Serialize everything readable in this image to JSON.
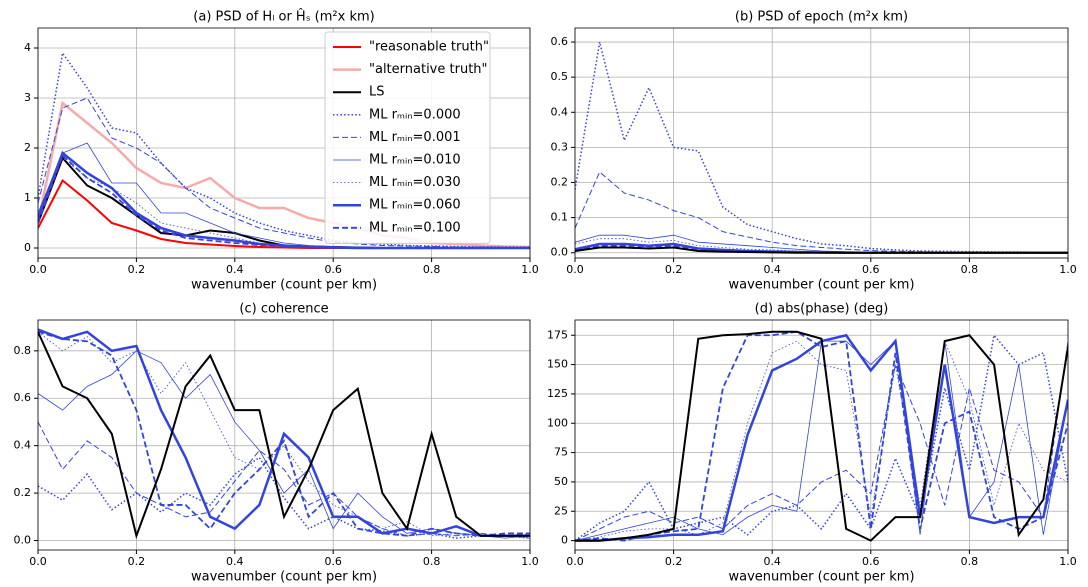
{
  "chart_data": [
    {
      "type": "line",
      "title": "(a) PSD of Hₗ or Ĥₛ (m²x km)",
      "x_label": "wavenumber (count per km)",
      "x": [
        0,
        0.05,
        0.1,
        0.15,
        0.2,
        0.25,
        0.3,
        0.35,
        0.4,
        0.45,
        0.5,
        0.55,
        0.6,
        0.65,
        0.7,
        0.75,
        0.8,
        0.85,
        0.9,
        0.95,
        1.0
      ],
      "xlim": [
        0,
        1
      ],
      "xticks": [
        {
          "value": 0,
          "label": "0.0"
        },
        0.2,
        0.4,
        0.6,
        0.8,
        {
          "value": 1,
          "label": "1.0"
        }
      ],
      "ylim": [
        -0.2,
        4.4
      ],
      "yticks": [
        0,
        1,
        2,
        3,
        4
      ],
      "grid": true,
      "legend": "upper right",
      "series": [
        {
          "name": "\"reasonable truth\"",
          "color": "#ff0000",
          "linestyle": "solid",
          "linewidth": 2,
          "values": [
            0.4,
            1.35,
            0.95,
            0.5,
            0.35,
            0.18,
            0.1,
            0.07,
            0.04,
            0.02,
            0.01,
            0,
            0,
            0,
            0,
            0,
            0,
            0,
            0,
            0,
            0
          ]
        },
        {
          "name": "\"alternative truth\"",
          "color": "#f7aaaa",
          "linestyle": "solid",
          "linewidth": 2.5,
          "values": [
            0.5,
            2.9,
            2.5,
            2.1,
            1.6,
            1.3,
            1.2,
            1.4,
            1.0,
            0.8,
            0.8,
            0.6,
            0.5,
            0.4,
            0.25,
            0.2,
            0.1,
            0.08,
            0.05,
            0.03,
            0.02
          ]
        },
        {
          "name": "LS",
          "color": "#000000",
          "linestyle": "solid",
          "linewidth": 2,
          "values": [
            0.5,
            1.8,
            1.25,
            1.0,
            0.65,
            0.3,
            0.25,
            0.35,
            0.3,
            0.15,
            0.05,
            0.03,
            0.02,
            0.01,
            0,
            0,
            0,
            0,
            0,
            0,
            0
          ]
        },
        {
          "name": "ML rₘᵢₙ=0.000",
          "color": "#3344dd",
          "linestyle": "dotted",
          "linewidth": 1.5,
          "values": [
            1.0,
            3.9,
            3.2,
            2.4,
            2.3,
            1.7,
            1.2,
            1.0,
            0.7,
            0.5,
            0.35,
            0.25,
            0.15,
            0.1,
            0.08,
            0.05,
            0.04,
            0.03,
            0.02,
            0.02,
            0.02
          ]
        },
        {
          "name": "ML rₘᵢₙ=0.001",
          "color": "#3344dd",
          "linestyle": "dashed",
          "linewidth": 1,
          "values": [
            0.9,
            2.8,
            3.0,
            2.2,
            2.0,
            1.7,
            1.2,
            0.8,
            0.6,
            0.4,
            0.3,
            0.2,
            0.12,
            0.08,
            0.05,
            0.04,
            0.03,
            0.02,
            0.02,
            0.01,
            0.01
          ]
        },
        {
          "name": "ML rₘᵢₙ=0.010",
          "color": "#3344dd",
          "linestyle": "solid",
          "linewidth": 0.8,
          "values": [
            0.7,
            1.9,
            2.1,
            1.3,
            1.3,
            0.7,
            0.7,
            0.5,
            0.3,
            0.2,
            0.1,
            0.05,
            0.03,
            0.02,
            0.01,
            0.01,
            0,
            0,
            0,
            0,
            0
          ]
        },
        {
          "name": "ML rₘᵢₙ=0.030",
          "color": "#3344dd",
          "linestyle": "dotted",
          "linewidth": 0.8,
          "values": [
            0.6,
            1.8,
            1.4,
            1.2,
            0.9,
            0.5,
            0.4,
            0.3,
            0.2,
            0.1,
            0.05,
            0.03,
            0.02,
            0.01,
            0,
            0,
            0,
            0,
            0,
            0,
            0
          ]
        },
        {
          "name": "ML rₘᵢₙ=0.060",
          "color": "#3344dd",
          "linestyle": "solid",
          "linewidth": 2.5,
          "values": [
            0.6,
            1.9,
            1.5,
            1.2,
            0.7,
            0.4,
            0.25,
            0.2,
            0.15,
            0.08,
            0.05,
            0.02,
            0.01,
            0,
            0,
            0,
            0,
            0,
            0,
            0,
            0
          ]
        },
        {
          "name": "ML rₘᵢₙ=0.100",
          "color": "#3344dd",
          "linestyle": "dashed",
          "linewidth": 1.8,
          "values": [
            0.5,
            1.85,
            1.4,
            1.1,
            0.65,
            0.35,
            0.2,
            0.15,
            0.1,
            0.06,
            0.04,
            0.02,
            0.01,
            0,
            0,
            0,
            0,
            0,
            0,
            0,
            0
          ]
        }
      ]
    },
    {
      "type": "line",
      "title": "(b) PSD of epoch (m²x km)",
      "x_label": "wavenumber (count per km)",
      "x": [
        0,
        0.05,
        0.1,
        0.15,
        0.2,
        0.25,
        0.3,
        0.35,
        0.4,
        0.45,
        0.5,
        0.55,
        0.6,
        0.65,
        0.7,
        0.75,
        0.8,
        0.85,
        0.9,
        0.95,
        1.0
      ],
      "xlim": [
        0,
        1
      ],
      "xticks": [
        {
          "value": 0,
          "label": "0.0"
        },
        0.2,
        0.4,
        0.6,
        0.8,
        {
          "value": 1,
          "label": "1.0"
        }
      ],
      "ylim": [
        -0.015,
        0.64
      ],
      "yticks": [
        {
          "value": 0,
          "label": "0.0"
        },
        0.1,
        0.2,
        0.3,
        0.4,
        0.5,
        0.6
      ],
      "grid": true,
      "series": [
        {
          "color": "#3344dd",
          "linestyle": "dotted",
          "linewidth": 1.5,
          "values": [
            0.18,
            0.6,
            0.32,
            0.47,
            0.3,
            0.29,
            0.13,
            0.08,
            0.06,
            0.04,
            0.025,
            0.02,
            0.012,
            0.008,
            0.005,
            0.004,
            0.003,
            0.002,
            0.002,
            0.001,
            0.001
          ]
        },
        {
          "color": "#3344dd",
          "linestyle": "dashed",
          "linewidth": 1,
          "values": [
            0.07,
            0.23,
            0.17,
            0.15,
            0.12,
            0.1,
            0.06,
            0.045,
            0.03,
            0.02,
            0.015,
            0.01,
            0.006,
            0.004,
            0.003,
            0.002,
            0.001,
            0.001,
            0.001,
            0,
            0
          ]
        },
        {
          "color": "#3344dd",
          "linestyle": "solid",
          "linewidth": 0.8,
          "values": [
            0.03,
            0.05,
            0.05,
            0.04,
            0.05,
            0.03,
            0.025,
            0.02,
            0.015,
            0.01,
            0.005,
            0.003,
            0.002,
            0.001,
            0,
            0,
            0,
            0,
            0,
            0,
            0
          ]
        },
        {
          "color": "#3344dd",
          "linestyle": "dotted",
          "linewidth": 0.8,
          "values": [
            0.025,
            0.04,
            0.04,
            0.03,
            0.035,
            0.02,
            0.015,
            0.01,
            0.008,
            0.005,
            0.003,
            0.002,
            0.001,
            0,
            0,
            0,
            0,
            0,
            0,
            0,
            0
          ]
        },
        {
          "color": "#3344dd",
          "linestyle": "solid",
          "linewidth": 2.5,
          "values": [
            0.01,
            0.025,
            0.025,
            0.02,
            0.025,
            0.012,
            0.008,
            0.005,
            0.003,
            0.002,
            0.001,
            0,
            0,
            0,
            0,
            0,
            0,
            0,
            0,
            0,
            0
          ]
        },
        {
          "color": "#3344dd",
          "linestyle": "dashed",
          "linewidth": 1.8,
          "values": [
            0.01,
            0.02,
            0.02,
            0.018,
            0.02,
            0.01,
            0.006,
            0.004,
            0.002,
            0.001,
            0,
            0,
            0,
            0,
            0,
            0,
            0,
            0,
            0,
            0,
            0
          ]
        },
        {
          "color": "#000000",
          "linestyle": "solid",
          "linewidth": 2,
          "values": [
            0.005,
            0.015,
            0.015,
            0.012,
            0.015,
            0.005,
            0.003,
            0.002,
            0.001,
            0,
            0,
            0,
            0,
            0,
            0,
            0,
            0,
            0,
            0,
            0,
            0
          ]
        }
      ]
    },
    {
      "type": "line",
      "title": "(c) coherence",
      "x_label": "wavenumber (count per km)",
      "x": [
        0,
        0.05,
        0.1,
        0.15,
        0.2,
        0.25,
        0.3,
        0.35,
        0.4,
        0.45,
        0.5,
        0.55,
        0.6,
        0.65,
        0.7,
        0.75,
        0.8,
        0.85,
        0.9,
        0.95,
        1.0
      ],
      "xlim": [
        0,
        1
      ],
      "xticks": [
        {
          "value": 0,
          "label": "0.0"
        },
        0.2,
        0.4,
        0.6,
        0.8,
        {
          "value": 1,
          "label": "1.0"
        }
      ],
      "ylim": [
        -0.04,
        0.93
      ],
      "yticks": [
        {
          "value": 0,
          "label": "0.0"
        },
        0.2,
        0.4,
        0.6,
        0.8
      ],
      "grid": true,
      "series": [
        {
          "color": "#3344dd",
          "linestyle": "dotted",
          "linewidth": 1.5,
          "values": [
            0.23,
            0.17,
            0.28,
            0.13,
            0.2,
            0.12,
            0.2,
            0.15,
            0.28,
            0.35,
            0.18,
            0.05,
            0.1,
            0.05,
            0.04,
            0.02,
            0.03,
            0.01,
            0.02,
            0.02,
            0.01
          ]
        },
        {
          "color": "#3344dd",
          "linestyle": "dashed",
          "linewidth": 1,
          "values": [
            0.5,
            0.3,
            0.42,
            0.35,
            0.2,
            0.15,
            0.1,
            0.12,
            0.25,
            0.38,
            0.3,
            0.15,
            0.2,
            0.1,
            0.05,
            0.02,
            0.03,
            0.02,
            0.03,
            0.02,
            0.03
          ]
        },
        {
          "color": "#3344dd",
          "linestyle": "solid",
          "linewidth": 0.8,
          "values": [
            0.62,
            0.55,
            0.65,
            0.7,
            0.8,
            0.75,
            0.6,
            0.7,
            0.5,
            0.38,
            0.2,
            0.3,
            0.05,
            0.2,
            0.1,
            0.03,
            0.05,
            0.03,
            0.02,
            0.01,
            0.02
          ]
        },
        {
          "color": "#3344dd",
          "linestyle": "dotted",
          "linewidth": 0.8,
          "values": [
            0.88,
            0.8,
            0.86,
            0.75,
            0.8,
            0.62,
            0.75,
            0.55,
            0.35,
            0.3,
            0.4,
            0.25,
            0.15,
            0.1,
            0.05,
            0.08,
            0.02,
            0.03,
            0.02,
            0.02,
            0.01
          ]
        },
        {
          "color": "#3344dd",
          "linestyle": "solid",
          "linewidth": 2.5,
          "values": [
            0.89,
            0.85,
            0.88,
            0.8,
            0.82,
            0.55,
            0.35,
            0.1,
            0.05,
            0.15,
            0.45,
            0.35,
            0.1,
            0.1,
            0.03,
            0.05,
            0.03,
            0.06,
            0.02,
            0.02,
            0.02
          ]
        },
        {
          "color": "#3344dd",
          "linestyle": "dashed",
          "linewidth": 1.8,
          "values": [
            0.88,
            0.85,
            0.84,
            0.78,
            0.55,
            0.15,
            0.15,
            0.05,
            0.2,
            0.3,
            0.42,
            0.1,
            0.2,
            0.05,
            0.03,
            0.02,
            0.05,
            0.03,
            0.02,
            0.03,
            0.03
          ]
        },
        {
          "color": "#000000",
          "linestyle": "solid",
          "linewidth": 2,
          "values": [
            0.88,
            0.65,
            0.6,
            0.45,
            0.02,
            0.3,
            0.65,
            0.78,
            0.55,
            0.55,
            0.1,
            0.3,
            0.55,
            0.64,
            0.2,
            0.05,
            0.45,
            0.1,
            0.02,
            0.02,
            0.02
          ]
        }
      ]
    },
    {
      "type": "line",
      "title": "(d) abs(phase) (deg)",
      "x_label": "wavenumber (count per km)",
      "x": [
        0,
        0.05,
        0.1,
        0.15,
        0.2,
        0.25,
        0.3,
        0.35,
        0.4,
        0.45,
        0.5,
        0.55,
        0.6,
        0.65,
        0.7,
        0.75,
        0.8,
        0.85,
        0.9,
        0.95,
        1.0
      ],
      "xlim": [
        0,
        1
      ],
      "xticks": [
        {
          "value": 0,
          "label": "0.0"
        },
        0.2,
        0.4,
        0.6,
        0.8,
        {
          "value": 1,
          "label": "1.0"
        }
      ],
      "ylim": [
        -8,
        188
      ],
      "yticks": [
        0,
        25,
        50,
        75,
        100,
        125,
        150,
        175
      ],
      "grid": true,
      "series": [
        {
          "color": "#3344dd",
          "linestyle": "dotted",
          "linewidth": 1.5,
          "values": [
            0,
            15,
            25,
            50,
            10,
            15,
            20,
            5,
            25,
            30,
            10,
            40,
            10,
            70,
            20,
            130,
            60,
            175,
            150,
            160,
            50
          ]
        },
        {
          "color": "#3344dd",
          "linestyle": "dashed",
          "linewidth": 1,
          "values": [
            0,
            10,
            20,
            25,
            15,
            20,
            10,
            30,
            40,
            30,
            50,
            60,
            40,
            150,
            100,
            30,
            130,
            60,
            50,
            20,
            170
          ]
        },
        {
          "color": "#3344dd",
          "linestyle": "solid",
          "linewidth": 0.8,
          "values": [
            0,
            5,
            10,
            15,
            20,
            10,
            5,
            20,
            30,
            25,
            170,
            170,
            150,
            170,
            5,
            170,
            20,
            50,
            150,
            5,
            120
          ]
        },
        {
          "color": "#3344dd",
          "linestyle": "dotted",
          "linewidth": 0.8,
          "values": [
            0,
            3,
            8,
            10,
            10,
            5,
            15,
            100,
            160,
            170,
            150,
            145,
            20,
            150,
            30,
            170,
            120,
            30,
            100,
            60,
            50
          ]
        },
        {
          "color": "#3344dd",
          "linestyle": "solid",
          "linewidth": 2.5,
          "values": [
            0,
            0,
            2,
            3,
            5,
            5,
            8,
            90,
            145,
            155,
            170,
            175,
            145,
            170,
            20,
            150,
            20,
            15,
            20,
            20,
            120
          ]
        },
        {
          "color": "#3344dd",
          "linestyle": "dashed",
          "linewidth": 1.8,
          "values": [
            0,
            2,
            0,
            5,
            8,
            10,
            130,
            175,
            175,
            178,
            165,
            170,
            10,
            160,
            10,
            100,
            110,
            20,
            10,
            20,
            100
          ]
        },
        {
          "color": "#000000",
          "linestyle": "solid",
          "linewidth": 2,
          "values": [
            0,
            0,
            2,
            5,
            10,
            172,
            175,
            176,
            178,
            178,
            172,
            10,
            0,
            20,
            20,
            170,
            175,
            150,
            5,
            35,
            165
          ]
        }
      ]
    }
  ]
}
